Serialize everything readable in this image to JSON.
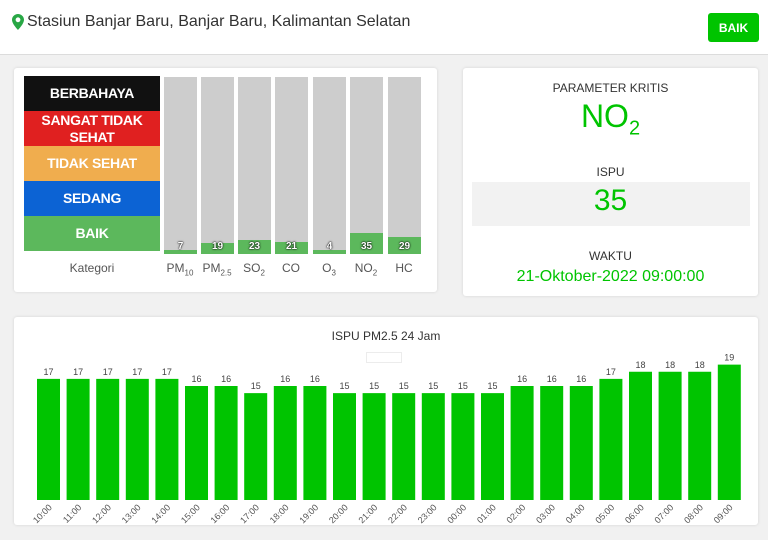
{
  "header": {
    "station": "Stasiun Banjar Baru, Banjar Baru, Kalimantan Selatan",
    "status": "BAIK"
  },
  "categories": {
    "items": [
      {
        "label": "BERBAHAYA",
        "color": "#111111"
      },
      {
        "label": "SANGAT TIDAK SEHAT",
        "color": "#e02020"
      },
      {
        "label": "TIDAK SEHAT",
        "color": "#f0ad4e"
      },
      {
        "label": "SEDANG",
        "color": "#0c63d4"
      },
      {
        "label": "BAIK",
        "color": "#5cb85c"
      }
    ],
    "caption": "Kategori"
  },
  "pollutants": [
    {
      "base": "PM",
      "sub": "10",
      "value": 7
    },
    {
      "base": "PM",
      "sub": "2.5",
      "value": 19
    },
    {
      "base": "SO",
      "sub": "2",
      "value": 23
    },
    {
      "base": "CO",
      "sub": "",
      "value": 21
    },
    {
      "base": "O",
      "sub": "3",
      "value": 4
    },
    {
      "base": "NO",
      "sub": "2",
      "value": 35
    },
    {
      "base": "HC",
      "sub": "",
      "value": 29
    }
  ],
  "pollutant_scale_max": 300,
  "summary": {
    "critical_title": "PARAMETER KRITIS",
    "critical_base": "NO",
    "critical_sub": "2",
    "ispu_title": "ISPU",
    "ispu_value": "35",
    "time_title": "WAKTU",
    "time_value": "21-Oktober-2022 09:00:00"
  },
  "colors": {
    "good": "#00c400",
    "bar": "#00c400"
  },
  "chart_data": {
    "type": "bar",
    "title": "ISPU PM2.5 24 Jam",
    "categories": [
      "10:00",
      "11:00",
      "12:00",
      "13:00",
      "14:00",
      "15:00",
      "16:00",
      "17:00",
      "18:00",
      "19:00",
      "20:00",
      "21:00",
      "22:00",
      "23:00",
      "00:00",
      "01:00",
      "02:00",
      "03:00",
      "04:00",
      "05:00",
      "06:00",
      "07:00",
      "08:00",
      "09:00"
    ],
    "values": [
      17,
      17,
      17,
      17,
      17,
      16,
      16,
      15,
      16,
      16,
      15,
      15,
      15,
      15,
      15,
      15,
      16,
      16,
      16,
      17,
      18,
      18,
      18,
      19
    ],
    "ylim": [
      0,
      24
    ],
    "grid": false
  }
}
